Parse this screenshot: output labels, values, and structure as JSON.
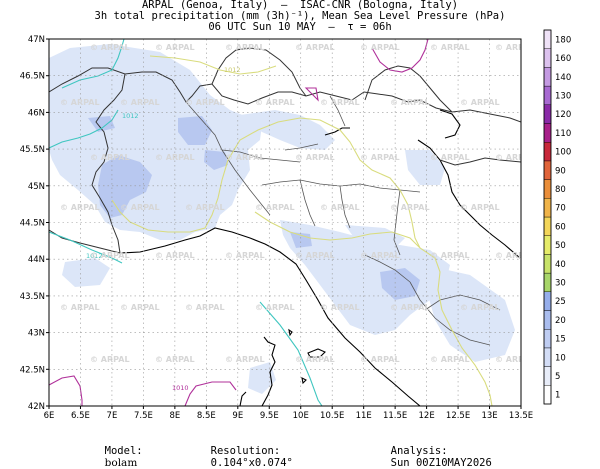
{
  "header": {
    "line1": "ARPAL (Genoa, Italy)  –  ISAC-CNR (Bologna, Italy)",
    "line2": "3h total precipitation (mm (3h)⁻¹), Mean Sea Level Pressure (hPa)",
    "line3": "06 UTC Sun 10 MAY  –  τ = 06h"
  },
  "map": {
    "lat_labels": [
      "47N",
      "46.5N",
      "46N",
      "45.5N",
      "45N",
      "44.5N",
      "44N",
      "43.5N",
      "43N",
      "42.5N",
      "42N"
    ],
    "lon_labels": [
      "6E",
      "6.5E",
      "7E",
      "7.5E",
      "8E",
      "8.5E",
      "9E",
      "9.5E",
      "10E",
      "10.5E",
      "11E",
      "11.5E",
      "12E",
      "12.5E",
      "13E",
      "13.5E"
    ],
    "watermark": "ARPAL",
    "isobar_labels": [
      "1012",
      "1012",
      "1012",
      "1010"
    ],
    "colors": {
      "precip_light": "#dce6f8",
      "precip_mid": "#b8c8f0",
      "isobar_teal": "#3fc6c0",
      "isobar_yellow": "#d9dc7e",
      "isobar_magenta": "#b0309a",
      "coast": "#000000",
      "border": "#333333"
    }
  },
  "colorbar": {
    "labels": [
      "1",
      "5",
      "10",
      "15",
      "20",
      "25",
      "30",
      "40",
      "50",
      "60",
      "70",
      "80",
      "90",
      "100",
      "110",
      "120",
      "130",
      "140",
      "160",
      "180"
    ],
    "colors": [
      "#ffffff",
      "#e8edf9",
      "#d3ddf6",
      "#bfcdf2",
      "#aabdee",
      "#96aeeb",
      "#a8d66a",
      "#c8e36a",
      "#e6ec6a",
      "#f3d65a",
      "#f0b44a",
      "#ea8e3a",
      "#e0643a",
      "#c8283a",
      "#a8208a",
      "#8a2aa8",
      "#a86ad2",
      "#c49ae2",
      "#dcc2ee",
      "#efe2f7"
    ]
  },
  "footer": {
    "model_label": "Model:",
    "model_value": "bolam",
    "resolution_label": "Resolution:",
    "resolution_value": "0.104°x0.074°",
    "analysis_label": "Analysis:",
    "analysis_value": "Sun 00Z10MAY2026"
  }
}
